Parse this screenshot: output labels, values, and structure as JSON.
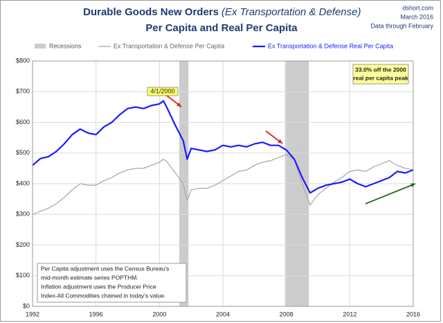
{
  "chart_data": {
    "type": "line",
    "title": "Durable Goods New Orders",
    "title_italic": "(Ex Transportation & Defense)",
    "subtitle": "Per Capita and Real Per Capita",
    "source": "dshort.com",
    "date": "March 2016",
    "data_note": "Data through February",
    "x": [
      1992.0,
      1992.5,
      1993.0,
      1993.5,
      1994.0,
      1994.5,
      1995.0,
      1995.5,
      1996.0,
      1996.5,
      1997.0,
      1997.5,
      1998.0,
      1998.5,
      1999.0,
      1999.5,
      2000.0,
      2000.25,
      2000.5,
      2001.0,
      2001.5,
      2001.75,
      2002.0,
      2002.5,
      2003.0,
      2003.5,
      2004.0,
      2004.5,
      2005.0,
      2005.5,
      2006.0,
      2006.5,
      2007.0,
      2007.5,
      2008.0,
      2008.5,
      2009.0,
      2009.5,
      2010.0,
      2010.5,
      2011.0,
      2011.5,
      2012.0,
      2012.5,
      2013.0,
      2013.5,
      2014.0,
      2014.5,
      2015.0,
      2015.5,
      2016.0
    ],
    "series": [
      {
        "name": "Ex Transportation & Defense Per Capita",
        "color": "#aaaaaa",
        "width": 1.3,
        "values": [
          300,
          310,
          320,
          335,
          355,
          380,
          400,
          395,
          395,
          410,
          420,
          435,
          445,
          450,
          450,
          460,
          470,
          480,
          470,
          435,
          400,
          345,
          380,
          385,
          385,
          395,
          410,
          425,
          440,
          445,
          460,
          470,
          475,
          485,
          495,
          480,
          400,
          330,
          365,
          385,
          405,
          420,
          440,
          445,
          440,
          455,
          465,
          475,
          460,
          450,
          445
        ]
      },
      {
        "name": "Ex Transportation & Defense Real Per Capita",
        "color": "#1a1aff",
        "width": 2.2,
        "values": [
          460,
          482,
          488,
          505,
          530,
          560,
          578,
          565,
          560,
          585,
          600,
          625,
          645,
          650,
          645,
          655,
          660,
          670,
          645,
          590,
          540,
          480,
          515,
          510,
          505,
          510,
          525,
          520,
          525,
          520,
          530,
          535,
          525,
          525,
          510,
          480,
          420,
          370,
          385,
          395,
          400,
          405,
          415,
          400,
          390,
          400,
          410,
          420,
          440,
          435,
          445
        ]
      }
    ],
    "recessions_name": "Recessions",
    "recessions_color": "#cccccc",
    "recessions": [
      [
        2001.25,
        2001.83
      ],
      [
        2007.92,
        2009.42
      ]
    ],
    "xlim": [
      1992,
      2016
    ],
    "xticks": [
      1992,
      1996,
      2000,
      2004,
      2008,
      2012,
      2016
    ],
    "ylim": [
      0,
      800
    ],
    "yticks": [
      {
        "value": 0,
        "label": "$0"
      },
      {
        "value": 100,
        "label": "$100"
      },
      {
        "value": 200,
        "label": "$200"
      },
      {
        "value": 300,
        "label": "$300"
      },
      {
        "value": 400,
        "label": "$400"
      },
      {
        "value": 500,
        "label": "$500"
      },
      {
        "value": 600,
        "label": "$600"
      },
      {
        "value": 700,
        "label": "$700"
      },
      {
        "value": 800,
        "label": "$800"
      }
    ],
    "grid": true,
    "peak_label": "4/1/2000",
    "callout": [
      "33.0% off the 2000",
      "real per capita peak"
    ],
    "footnote": [
      "Per Capita adjustment uses the Census Bureau's",
      "mid-month estimate series POPTHM.",
      "Inflation adjustment uses the Producer Price",
      "Index-All Commodities chained in today's value."
    ]
  }
}
